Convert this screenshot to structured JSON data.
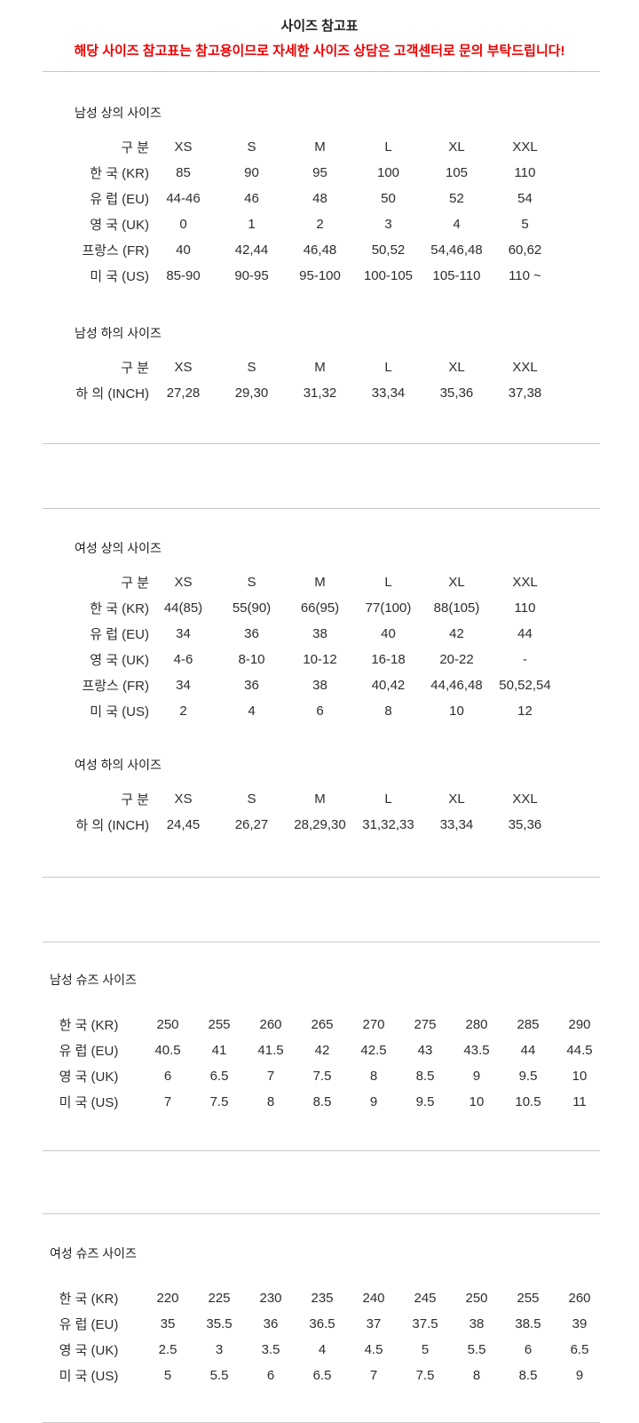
{
  "header": {
    "title": "사이즈 참고표",
    "notice": "해당 사이즈 참고표는 참고용이므로 자세한 사이즈 상담은 고객센터로 문의 부탁드립니다!"
  },
  "colors": {
    "notice_red": "#ee0000",
    "divider_gray": "#c9c9c9",
    "text": "#2d2d2d"
  },
  "sections": [
    {
      "title": "남성 상의 사이즈",
      "header": [
        "구 분",
        "XS",
        "S",
        "M",
        "L",
        "XL",
        "XXL"
      ],
      "rows": [
        {
          "label": "한 국 (KR)",
          "values": [
            "85",
            "90",
            "95",
            "100",
            "105",
            "110"
          ]
        },
        {
          "label": "유 럽 (EU)",
          "values": [
            "44-46",
            "46",
            "48",
            "50",
            "52",
            "54"
          ]
        },
        {
          "label": "영 국 (UK)",
          "values": [
            "0",
            "1",
            "2",
            "3",
            "4",
            "5"
          ]
        },
        {
          "label": "프랑스 (FR)",
          "values": [
            "40",
            "42,44",
            "46,48",
            "50,52",
            "54,46,48",
            "60,62"
          ]
        },
        {
          "label": "미 국 (US)",
          "values": [
            "85-90",
            "90-95",
            "95-100",
            "100-105",
            "105-110",
            "110 ~"
          ]
        }
      ]
    },
    {
      "title": "남성 하의 사이즈",
      "header": [
        "구 분",
        "XS",
        "S",
        "M",
        "L",
        "XL",
        "XXL"
      ],
      "rows": [
        {
          "label": "하 의 (INCH)",
          "values": [
            "27,28",
            "29,30",
            "31,32",
            "33,34",
            "35,36",
            "37,38"
          ]
        }
      ]
    },
    {
      "title": "여성 상의 사이즈",
      "header": [
        "구 분",
        "XS",
        "S",
        "M",
        "L",
        "XL",
        "XXL"
      ],
      "rows": [
        {
          "label": "한 국 (KR)",
          "values": [
            "44(85)",
            "55(90)",
            "66(95)",
            "77(100)",
            "88(105)",
            "110"
          ]
        },
        {
          "label": "유 럽 (EU)",
          "values": [
            "34",
            "36",
            "38",
            "40",
            "42",
            "44"
          ]
        },
        {
          "label": "영 국 (UK)",
          "values": [
            "4-6",
            "8-10",
            "10-12",
            "16-18",
            "20-22",
            "-"
          ]
        },
        {
          "label": "프랑스 (FR)",
          "values": [
            "34",
            "36",
            "38",
            "40,42",
            "44,46,48",
            "50,52,54"
          ]
        },
        {
          "label": "미 국 (US)",
          "values": [
            "2",
            "4",
            "6",
            "8",
            "10",
            "12"
          ]
        }
      ]
    },
    {
      "title": "여성 하의 사이즈",
      "header": [
        "구 분",
        "XS",
        "S",
        "M",
        "L",
        "XL",
        "XXL"
      ],
      "rows": [
        {
          "label": "하 의 (INCH)",
          "values": [
            "24,45",
            "26,27",
            "28,29,30",
            "31,32,33",
            "33,34",
            "35,36"
          ]
        }
      ]
    },
    {
      "title": "남성 슈즈 사이즈",
      "rows": [
        {
          "label": "한 국 (KR)",
          "values": [
            "250",
            "255",
            "260",
            "265",
            "270",
            "275",
            "280",
            "285",
            "290"
          ]
        },
        {
          "label": "유 럽 (EU)",
          "values": [
            "40.5",
            "41",
            "41.5",
            "42",
            "42.5",
            "43",
            "43.5",
            "44",
            "44.5"
          ]
        },
        {
          "label": "영 국 (UK)",
          "values": [
            "6",
            "6.5",
            "7",
            "7.5",
            "8",
            "8.5",
            "9",
            "9.5",
            "10"
          ]
        },
        {
          "label": "미 국 (US)",
          "values": [
            "7",
            "7.5",
            "8",
            "8.5",
            "9",
            "9.5",
            "10",
            "10.5",
            "11"
          ]
        }
      ]
    },
    {
      "title": "여성 슈즈 사이즈",
      "rows": [
        {
          "label": "한 국 (KR)",
          "values": [
            "220",
            "225",
            "230",
            "235",
            "240",
            "245",
            "250",
            "255",
            "260"
          ]
        },
        {
          "label": "유 럽 (EU)",
          "values": [
            "35",
            "35.5",
            "36",
            "36.5",
            "37",
            "37.5",
            "38",
            "38.5",
            "39"
          ]
        },
        {
          "label": "영 국 (UK)",
          "values": [
            "2.5",
            "3",
            "3.5",
            "4",
            "4.5",
            "5",
            "5.5",
            "6",
            "6.5"
          ]
        },
        {
          "label": "미 국 (US)",
          "values": [
            "5",
            "5.5",
            "6",
            "6.5",
            "7",
            "7.5",
            "8",
            "8.5",
            "9"
          ]
        }
      ]
    }
  ]
}
